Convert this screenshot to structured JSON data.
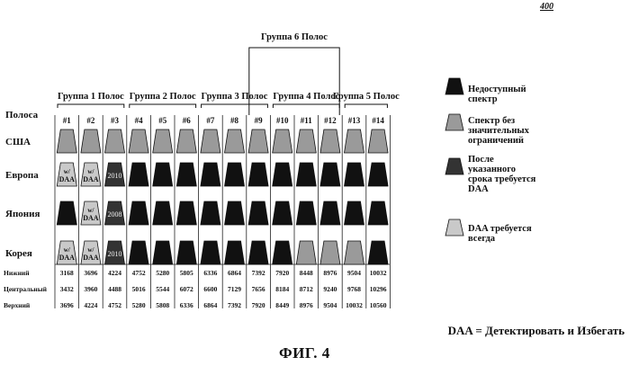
{
  "figure_ref": "400",
  "figure_caption": "ФИГ. 4",
  "dfs_definition": "DAA = Детектировать и Избегать",
  "colors": {
    "unavailable": "#111111",
    "unrestricted": "#9a9a9a",
    "after_deadline": "#333333",
    "daa_always": "#c9c9c9"
  },
  "group6_label": "Группа 6 Полос",
  "groups": [
    {
      "label": "Группа 1 Полос"
    },
    {
      "label": "Группа 2 Полос"
    },
    {
      "label": "Группа 3 Полос"
    },
    {
      "label": "Группа 4 Полос"
    },
    {
      "label": "Группа 5 Полос"
    }
  ],
  "band_row_label": "Полоса",
  "bands": [
    "#1",
    "#2",
    "#3",
    "#4",
    "#5",
    "#6",
    "#7",
    "#8",
    "#9",
    "#10",
    "#11",
    "#12",
    "#13",
    "#14"
  ],
  "regions": [
    {
      "name": "США",
      "cells": [
        "u",
        "u",
        "u",
        "u",
        "u",
        "u",
        "u",
        "u",
        "u",
        "u",
        "u",
        "u",
        "u",
        "u"
      ]
    },
    {
      "name": "Европа",
      "cells": [
        "w",
        "w",
        "d",
        "x",
        "x",
        "x",
        "x",
        "x",
        "x",
        "x",
        "x",
        "x",
        "x",
        "x"
      ],
      "inner": [
        "w/\nDAA",
        "w/\nDAA",
        "2010",
        "",
        "",
        "",
        "",
        "",
        "",
        "",
        "",
        "",
        "",
        ""
      ]
    },
    {
      "name": "Япония",
      "cells": [
        "x",
        "w",
        "d",
        "x",
        "x",
        "x",
        "x",
        "x",
        "x",
        "x",
        "x",
        "x",
        "x",
        "x"
      ],
      "inner": [
        "",
        "w/\nDAA",
        "2008",
        "",
        "",
        "",
        "",
        "",
        "",
        "",
        "",
        "",
        "",
        ""
      ]
    },
    {
      "name": "Корея",
      "cells": [
        "w",
        "w",
        "d",
        "x",
        "x",
        "x",
        "x",
        "x",
        "x",
        "x",
        "u",
        "u",
        "u",
        "x"
      ],
      "inner": [
        "w/\nDAA",
        "w/\nDAA",
        "2010",
        "",
        "",
        "",
        "",
        "",
        "",
        "",
        "",
        "",
        "",
        ""
      ]
    }
  ],
  "freq_rows": [
    {
      "label": "Нижний",
      "values": [
        "3168",
        "3696",
        "4224",
        "4752",
        "5280",
        "5805",
        "6336",
        "6864",
        "7392",
        "7920",
        "8448",
        "8976",
        "9504",
        "10032"
      ]
    },
    {
      "label": "Центральный",
      "values": [
        "3432",
        "3960",
        "4488",
        "5016",
        "5544",
        "6072",
        "6600",
        "7129",
        "7656",
        "8184",
        "8712",
        "9240",
        "9768",
        "10296"
      ]
    },
    {
      "label": "Верхний",
      "values": [
        "3696",
        "4224",
        "4752",
        "5280",
        "5808",
        "6336",
        "6864",
        "7392",
        "7920",
        "8449",
        "8976",
        "9504",
        "10032",
        "10560"
      ]
    }
  ],
  "legend": [
    {
      "key": "unavailable",
      "label": "Недоступный спектр"
    },
    {
      "key": "unrestricted",
      "label": "Спектр без значительных ограничений"
    },
    {
      "key": "after_deadline",
      "label": "После указанного срока требуется DAA"
    },
    {
      "key": "daa_always",
      "label": "DAA требуется всегда"
    }
  ]
}
